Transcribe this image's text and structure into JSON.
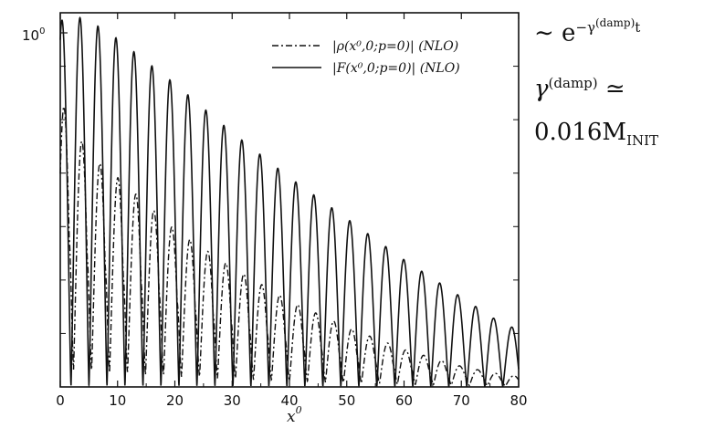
{
  "chart_data": {
    "type": "line",
    "xlabel": "x",
    "xlabel_sup": "0",
    "xlim": [
      0,
      80
    ],
    "x_ticks": [
      "0",
      "10",
      "20",
      "30",
      "40",
      "50",
      "60",
      "70",
      "80"
    ],
    "y_scale": "log",
    "y_tick_label_base": "10",
    "y_tick_label_exp": "0",
    "legend_position": "top-right",
    "period": 3.14,
    "first_peak_x": 0.3,
    "series": [
      {
        "name": "|ρ(x⁰,0;p=0)|  (NLO)",
        "line_style": "dash-dot",
        "phase_offset": 0.35,
        "peak_envelope": {
          "x": [
            0.6,
            5,
            10,
            20,
            30,
            40,
            50,
            60,
            70,
            78
          ],
          "y": [
            0.75,
            0.62,
            0.56,
            0.42,
            0.32,
            0.23,
            0.16,
            0.1,
            0.055,
            0.03
          ]
        }
      },
      {
        "name": "|F(x⁰,0;p=0)|  (NLO)",
        "line_style": "solid",
        "phase_offset": 0,
        "peak_envelope": {
          "x": [
            0.3,
            2.7,
            5,
            10,
            20,
            30,
            40,
            50,
            60,
            70,
            78
          ],
          "y": [
            0.98,
            0.99,
            0.98,
            0.93,
            0.81,
            0.68,
            0.56,
            0.45,
            0.34,
            0.24,
            0.16
          ]
        }
      }
    ]
  },
  "annotations": {
    "line1_prefix": "∼ e",
    "line1_exp_pre": "−γ",
    "line1_exp_sup": "(damp)",
    "line1_exp_post": "t",
    "line2_symbol": "γ",
    "line2_sup": "(damp)",
    "line2_rel": "≃",
    "line3_value": "0.016M",
    "line3_sub": "INIT"
  },
  "colors": {
    "ink": "#111111",
    "background": "#ffffff"
  }
}
